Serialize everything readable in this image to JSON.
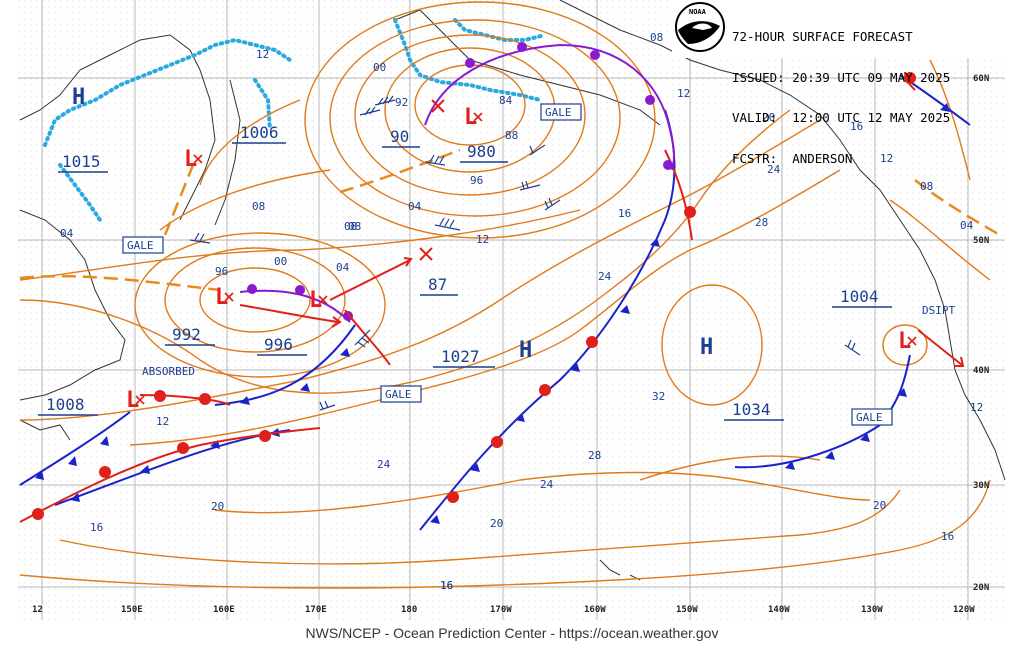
{
  "header": {
    "line1": "72-HOUR SURFACE FORECAST",
    "line2": "ISSUED: 20:39 UTC 09 MAY 2025",
    "line3": "VALID:  12:00 UTC 12 MAY 2025",
    "line4": "FCSTR:  ANDERSON",
    "logo": "NOAA"
  },
  "footer": "NWS/NCEP - Ocean Prediction Center - https://ocean.weather.gov",
  "lon_labels": [
    "12",
    "150E",
    "160E",
    "170E",
    "180",
    "170W",
    "160W",
    "150W",
    "140W",
    "130W",
    "120W"
  ],
  "lat_labels": [
    "60N",
    "50N",
    "40N",
    "30N",
    "20N"
  ],
  "pressure_centers": [
    "1015",
    "1006",
    "90",
    "980",
    "992",
    "996",
    "87",
    "1027",
    "1008",
    "1004",
    "1034"
  ],
  "isobar_labels": [
    "12",
    "00",
    "92",
    "84",
    "88",
    "96",
    "08",
    "04",
    "04",
    "08",
    "96",
    "00",
    "04",
    "08",
    "12",
    "16",
    "20",
    "24",
    "28",
    "32",
    "24",
    "28",
    "24",
    "20",
    "16",
    "16",
    "12",
    "16",
    "08",
    "04",
    "12",
    "20",
    "16",
    "12",
    "16",
    "20",
    "24",
    "12",
    "08"
  ],
  "box_labels": [
    "GALE",
    "GALE",
    "GALE",
    "GALE"
  ],
  "plain_labels": {
    "absorbed": "ABSORBED",
    "dsipt": "DSIPT"
  },
  "highs": [
    "H",
    "H",
    "H"
  ],
  "lows": [
    "L",
    "L",
    "L",
    "L",
    "L",
    "L"
  ],
  "colors": {
    "isobar": "#e07a1a",
    "warm": "#e0201a",
    "cold": "#1a23c8",
    "occluded": "#8a1ad0",
    "coast": "#333333",
    "ice": "#29a9e0",
    "label": "#1c3f8f"
  }
}
